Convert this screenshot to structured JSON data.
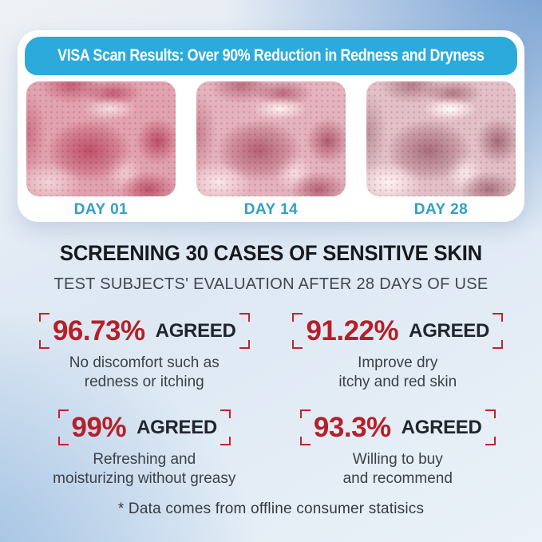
{
  "banner": {
    "title": "VISA Scan Results: Over 90% Reduction in Redness and Dryness"
  },
  "scan": {
    "days": [
      {
        "label": "DAY 01",
        "image": "skin-scan-day-01"
      },
      {
        "label": "DAY 14",
        "image": "skin-scan-day-14"
      },
      {
        "label": "DAY 28",
        "image": "skin-scan-day-28"
      }
    ]
  },
  "results": {
    "headline": "SCREENING 30 CASES OF SENSITIVE SKIN",
    "subheadline": "TEST SUBJECTS' EVALUATION AFTER 28 DAYS OF USE",
    "stats": [
      {
        "percent": "96.73%",
        "agreed_label": "AGREED",
        "desc": [
          "No discomfort such as",
          "redness or itching"
        ]
      },
      {
        "percent": "91.22%",
        "agreed_label": "AGREED",
        "desc": [
          "Improve dry",
          "itchy and red skin"
        ]
      },
      {
        "percent": "99%",
        "agreed_label": "AGREED",
        "desc": [
          "Refreshing and",
          "moisturizing without greasy"
        ]
      },
      {
        "percent": "93.3%",
        "agreed_label": "AGREED",
        "desc": [
          "Willing to buy",
          "and recommend"
        ]
      }
    ],
    "footnote": "* Data comes from offline consumer statisics"
  },
  "colors": {
    "banner_blue": "#2caadb",
    "day_label_blue": "#319fc7",
    "stat_red": "#b42029",
    "bracket_red": "#c0242e",
    "dark_text": "#22252d"
  }
}
